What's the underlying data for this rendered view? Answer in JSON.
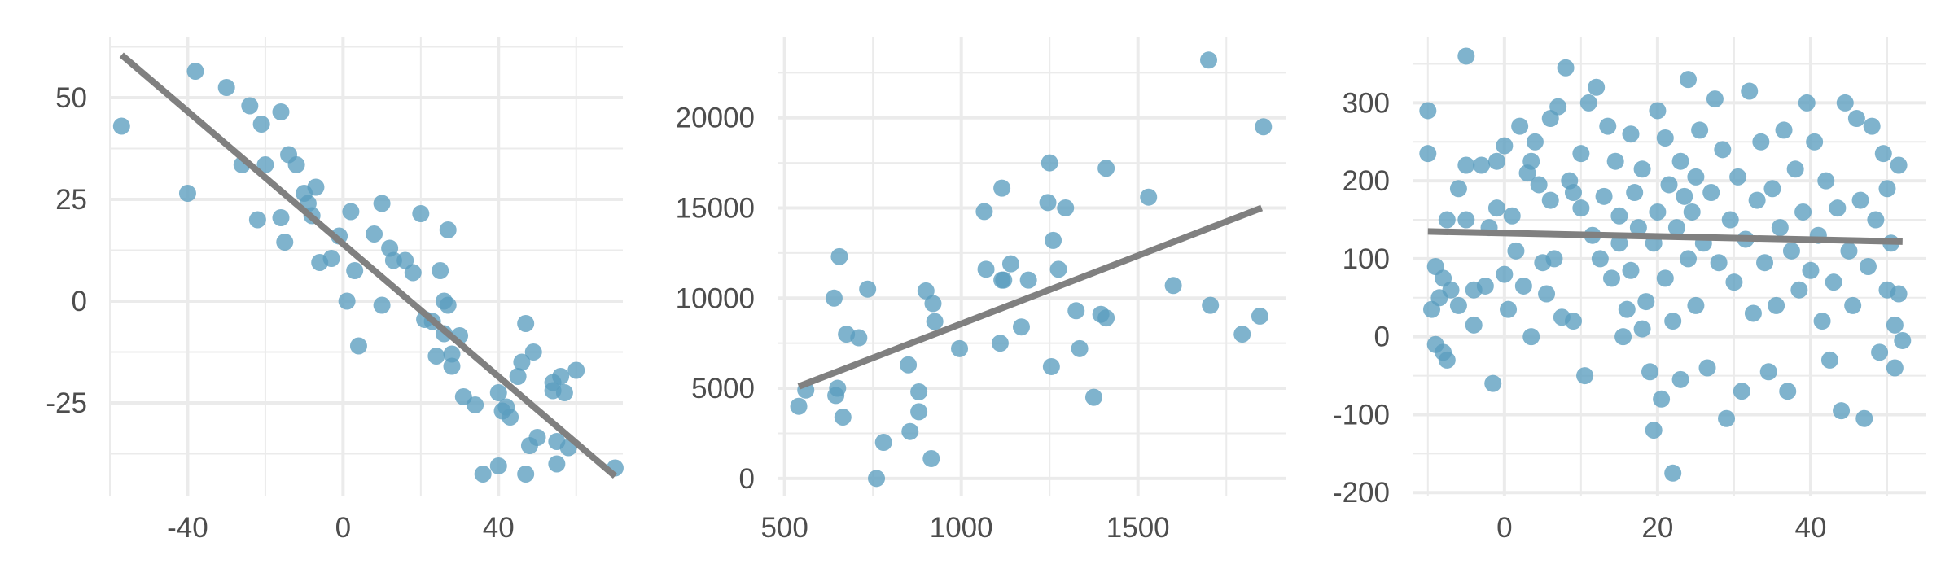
{
  "style": {
    "point_color": "#5b9ebf",
    "line_color": "#808080",
    "grid_color": "#ebebeb",
    "text_color": "#4d4d4d",
    "background": "#ffffff"
  },
  "chart_data": [
    {
      "type": "scatter",
      "title": "",
      "xlabel": "",
      "ylabel": "",
      "xlim": [
        -60,
        72
      ],
      "ylim": [
        -48,
        65
      ],
      "xticks": [
        -40,
        0,
        40
      ],
      "xtick_labels": [
        "-40",
        "0",
        "40"
      ],
      "yticks": [
        -25,
        0,
        25,
        50
      ],
      "ytick_labels": [
        "-25",
        "0",
        "25",
        "50"
      ],
      "grid": true,
      "legend": "none",
      "fit_line": {
        "x": [
          -57,
          70
        ],
        "y": [
          60.5,
          -43
        ]
      },
      "points": [
        {
          "x": -57,
          "y": 43
        },
        {
          "x": -40,
          "y": 26.5
        },
        {
          "x": -38,
          "y": 56.5
        },
        {
          "x": -30,
          "y": 52.5
        },
        {
          "x": -26,
          "y": 33.5
        },
        {
          "x": -24,
          "y": 48
        },
        {
          "x": -22,
          "y": 20
        },
        {
          "x": -21,
          "y": 43.5
        },
        {
          "x": -20,
          "y": 33.5
        },
        {
          "x": -16,
          "y": 46.5
        },
        {
          "x": -16,
          "y": 20.5
        },
        {
          "x": -15,
          "y": 14.5
        },
        {
          "x": -14,
          "y": 36
        },
        {
          "x": -12,
          "y": 33.5
        },
        {
          "x": -10,
          "y": 26.5
        },
        {
          "x": -9,
          "y": 24
        },
        {
          "x": -8,
          "y": 21
        },
        {
          "x": -7,
          "y": 28
        },
        {
          "x": -6,
          "y": 9.5
        },
        {
          "x": -3,
          "y": 10.5
        },
        {
          "x": -1,
          "y": 16
        },
        {
          "x": 1,
          "y": 0
        },
        {
          "x": 2,
          "y": 22
        },
        {
          "x": 3,
          "y": 7.5
        },
        {
          "x": 4,
          "y": -11
        },
        {
          "x": 8,
          "y": 16.5
        },
        {
          "x": 10,
          "y": 24
        },
        {
          "x": 10,
          "y": -1
        },
        {
          "x": 12,
          "y": 13
        },
        {
          "x": 13,
          "y": 10
        },
        {
          "x": 16,
          "y": 10
        },
        {
          "x": 18,
          "y": 7
        },
        {
          "x": 20,
          "y": 21.5
        },
        {
          "x": 21,
          "y": -4.5
        },
        {
          "x": 23,
          "y": -5
        },
        {
          "x": 24,
          "y": -13.5
        },
        {
          "x": 25,
          "y": 7.5
        },
        {
          "x": 26,
          "y": -8
        },
        {
          "x": 26,
          "y": 0
        },
        {
          "x": 27,
          "y": -1
        },
        {
          "x": 27,
          "y": 17.5
        },
        {
          "x": 28,
          "y": -16
        },
        {
          "x": 28,
          "y": -13
        },
        {
          "x": 30,
          "y": -8.5
        },
        {
          "x": 31,
          "y": -23.5
        },
        {
          "x": 34,
          "y": -25.5
        },
        {
          "x": 36,
          "y": -42.5
        },
        {
          "x": 40,
          "y": -22.5
        },
        {
          "x": 40,
          "y": -40.5
        },
        {
          "x": 41,
          "y": -27
        },
        {
          "x": 42,
          "y": -26
        },
        {
          "x": 43,
          "y": -28.5
        },
        {
          "x": 45,
          "y": -18.5
        },
        {
          "x": 46,
          "y": -15
        },
        {
          "x": 47,
          "y": -5.5
        },
        {
          "x": 47,
          "y": -42.5
        },
        {
          "x": 48,
          "y": -35.5
        },
        {
          "x": 49,
          "y": -12.5
        },
        {
          "x": 50,
          "y": -33.5
        },
        {
          "x": 54,
          "y": -22
        },
        {
          "x": 54,
          "y": -20
        },
        {
          "x": 55,
          "y": -34.5
        },
        {
          "x": 55,
          "y": -40
        },
        {
          "x": 56,
          "y": -18.5
        },
        {
          "x": 57,
          "y": -22.5
        },
        {
          "x": 58,
          "y": -36
        },
        {
          "x": 60,
          "y": -17
        },
        {
          "x": 70,
          "y": -41
        }
      ]
    },
    {
      "type": "scatter",
      "title": "",
      "xlabel": "",
      "ylabel": "",
      "xlim": [
        480,
        1920
      ],
      "ylim": [
        -1000,
        24500
      ],
      "xticks": [
        500,
        1000,
        1500
      ],
      "xtick_labels": [
        "500",
        "1000",
        "1500"
      ],
      "yticks": [
        0,
        5000,
        10000,
        15000,
        20000
      ],
      "ytick_labels": [
        "0",
        "5000",
        "10000",
        "15000",
        "20000"
      ],
      "grid": true,
      "legend": "none",
      "fit_line": {
        "x": [
          540,
          1850
        ],
        "y": [
          5100,
          15000
        ]
      },
      "points": [
        {
          "x": 540,
          "y": 4000
        },
        {
          "x": 560,
          "y": 4900
        },
        {
          "x": 640,
          "y": 10000
        },
        {
          "x": 645,
          "y": 4600
        },
        {
          "x": 650,
          "y": 5000
        },
        {
          "x": 655,
          "y": 12300
        },
        {
          "x": 665,
          "y": 3400
        },
        {
          "x": 675,
          "y": 8000
        },
        {
          "x": 710,
          "y": 7800
        },
        {
          "x": 735,
          "y": 10500
        },
        {
          "x": 760,
          "y": 0
        },
        {
          "x": 780,
          "y": 2000
        },
        {
          "x": 850,
          "y": 6300
        },
        {
          "x": 855,
          "y": 2600
        },
        {
          "x": 880,
          "y": 4800
        },
        {
          "x": 880,
          "y": 3700
        },
        {
          "x": 900,
          "y": 10400
        },
        {
          "x": 915,
          "y": 1100
        },
        {
          "x": 920,
          "y": 9700
        },
        {
          "x": 925,
          "y": 8700
        },
        {
          "x": 995,
          "y": 7200
        },
        {
          "x": 1065,
          "y": 14800
        },
        {
          "x": 1070,
          "y": 11600
        },
        {
          "x": 1110,
          "y": 7500
        },
        {
          "x": 1115,
          "y": 16100
        },
        {
          "x": 1115,
          "y": 11000
        },
        {
          "x": 1120,
          "y": 11000
        },
        {
          "x": 1140,
          "y": 11900
        },
        {
          "x": 1170,
          "y": 8400
        },
        {
          "x": 1190,
          "y": 11000
        },
        {
          "x": 1245,
          "y": 15300
        },
        {
          "x": 1250,
          "y": 17500
        },
        {
          "x": 1255,
          "y": 6200
        },
        {
          "x": 1260,
          "y": 13200
        },
        {
          "x": 1275,
          "y": 11600
        },
        {
          "x": 1295,
          "y": 15000
        },
        {
          "x": 1325,
          "y": 9300
        },
        {
          "x": 1335,
          "y": 7200
        },
        {
          "x": 1375,
          "y": 4500
        },
        {
          "x": 1395,
          "y": 9100
        },
        {
          "x": 1410,
          "y": 17200
        },
        {
          "x": 1410,
          "y": 8900
        },
        {
          "x": 1530,
          "y": 15600
        },
        {
          "x": 1600,
          "y": 10700
        },
        {
          "x": 1700,
          "y": 23200
        },
        {
          "x": 1705,
          "y": 9600
        },
        {
          "x": 1795,
          "y": 8000
        },
        {
          "x": 1845,
          "y": 9000
        },
        {
          "x": 1855,
          "y": 19500
        }
      ]
    },
    {
      "type": "scatter",
      "title": "",
      "xlabel": "",
      "ylabel": "",
      "xlim": [
        -12,
        55
      ],
      "ylim": [
        -205,
        385
      ],
      "xticks": [
        0,
        20,
        40
      ],
      "xtick_labels": [
        "0",
        "20",
        "40"
      ],
      "yticks": [
        -200,
        -100,
        0,
        100,
        200,
        300
      ],
      "ytick_labels": [
        "-200",
        "-100",
        "0",
        "100",
        "200",
        "300"
      ],
      "grid": true,
      "legend": "none",
      "fit_line": {
        "x": [
          -10,
          52
        ],
        "y": [
          135,
          122
        ]
      },
      "points": [
        {
          "x": -10,
          "y": 290
        },
        {
          "x": -10,
          "y": 235
        },
        {
          "x": -9.5,
          "y": 35
        },
        {
          "x": -9,
          "y": 90
        },
        {
          "x": -9,
          "y": -10
        },
        {
          "x": -8.5,
          "y": 50
        },
        {
          "x": -8,
          "y": 75
        },
        {
          "x": -8,
          "y": -20
        },
        {
          "x": -7.5,
          "y": 150
        },
        {
          "x": -7.5,
          "y": -30
        },
        {
          "x": -7,
          "y": 60
        },
        {
          "x": -6,
          "y": 40
        },
        {
          "x": -6,
          "y": 190
        },
        {
          "x": -5,
          "y": 360
        },
        {
          "x": -5,
          "y": 220
        },
        {
          "x": -5,
          "y": 150
        },
        {
          "x": -4,
          "y": 60
        },
        {
          "x": -4,
          "y": 15
        },
        {
          "x": -3,
          "y": 220
        },
        {
          "x": -2.5,
          "y": 65
        },
        {
          "x": -2,
          "y": 140
        },
        {
          "x": -1.5,
          "y": -60
        },
        {
          "x": -1,
          "y": 165
        },
        {
          "x": -1,
          "y": 225
        },
        {
          "x": 0,
          "y": 80
        },
        {
          "x": 0,
          "y": 245
        },
        {
          "x": 0.5,
          "y": 35
        },
        {
          "x": 1,
          "y": 155
        },
        {
          "x": 1.5,
          "y": 110
        },
        {
          "x": 2,
          "y": 270
        },
        {
          "x": 2.5,
          "y": 65
        },
        {
          "x": 3,
          "y": 210
        },
        {
          "x": 3.5,
          "y": 225
        },
        {
          "x": 3.5,
          "y": 0
        },
        {
          "x": 4,
          "y": 250
        },
        {
          "x": 4.5,
          "y": 195
        },
        {
          "x": 5,
          "y": 95
        },
        {
          "x": 5.5,
          "y": 55
        },
        {
          "x": 6,
          "y": 280
        },
        {
          "x": 6,
          "y": 175
        },
        {
          "x": 6.5,
          "y": 100
        },
        {
          "x": 7,
          "y": 295
        },
        {
          "x": 7.5,
          "y": 25
        },
        {
          "x": 8,
          "y": 345
        },
        {
          "x": 8.5,
          "y": 200
        },
        {
          "x": 9,
          "y": 185
        },
        {
          "x": 9,
          "y": 20
        },
        {
          "x": 10,
          "y": 165
        },
        {
          "x": 10,
          "y": 235
        },
        {
          "x": 10.5,
          "y": -50
        },
        {
          "x": 11,
          "y": 300
        },
        {
          "x": 11.5,
          "y": 130
        },
        {
          "x": 12,
          "y": 320
        },
        {
          "x": 12.5,
          "y": 100
        },
        {
          "x": 13,
          "y": 180
        },
        {
          "x": 13.5,
          "y": 270
        },
        {
          "x": 14,
          "y": 75
        },
        {
          "x": 14.5,
          "y": 225
        },
        {
          "x": 15,
          "y": 155
        },
        {
          "x": 15,
          "y": 120
        },
        {
          "x": 15.5,
          "y": 0
        },
        {
          "x": 16,
          "y": 35
        },
        {
          "x": 16.5,
          "y": 85
        },
        {
          "x": 16.5,
          "y": 260
        },
        {
          "x": 17,
          "y": 185
        },
        {
          "x": 17.5,
          "y": 140
        },
        {
          "x": 18,
          "y": 10
        },
        {
          "x": 18,
          "y": 215
        },
        {
          "x": 18.5,
          "y": 45
        },
        {
          "x": 19,
          "y": -45
        },
        {
          "x": 19.5,
          "y": 120
        },
        {
          "x": 19.5,
          "y": -120
        },
        {
          "x": 20,
          "y": 160
        },
        {
          "x": 20,
          "y": 290
        },
        {
          "x": 20.5,
          "y": -80
        },
        {
          "x": 21,
          "y": 255
        },
        {
          "x": 21,
          "y": 75
        },
        {
          "x": 21.5,
          "y": 195
        },
        {
          "x": 22,
          "y": -175
        },
        {
          "x": 22,
          "y": 20
        },
        {
          "x": 22.5,
          "y": 140
        },
        {
          "x": 23,
          "y": 225
        },
        {
          "x": 23,
          "y": -55
        },
        {
          "x": 23.5,
          "y": 180
        },
        {
          "x": 24,
          "y": 330
        },
        {
          "x": 24,
          "y": 100
        },
        {
          "x": 24.5,
          "y": 160
        },
        {
          "x": 25,
          "y": 40
        },
        {
          "x": 25,
          "y": 205
        },
        {
          "x": 25.5,
          "y": 265
        },
        {
          "x": 26,
          "y": 120
        },
        {
          "x": 26.5,
          "y": -40
        },
        {
          "x": 27,
          "y": 185
        },
        {
          "x": 27.5,
          "y": 305
        },
        {
          "x": 28,
          "y": 95
        },
        {
          "x": 28.5,
          "y": 240
        },
        {
          "x": 29,
          "y": -105
        },
        {
          "x": 29.5,
          "y": 150
        },
        {
          "x": 30,
          "y": 70
        },
        {
          "x": 30.5,
          "y": 205
        },
        {
          "x": 31,
          "y": -70
        },
        {
          "x": 31.5,
          "y": 125
        },
        {
          "x": 32,
          "y": 315
        },
        {
          "x": 32.5,
          "y": 30
        },
        {
          "x": 33,
          "y": 175
        },
        {
          "x": 33.5,
          "y": 250
        },
        {
          "x": 34,
          "y": 95
        },
        {
          "x": 34.5,
          "y": -45
        },
        {
          "x": 35,
          "y": 190
        },
        {
          "x": 35.5,
          "y": 40
        },
        {
          "x": 36,
          "y": 140
        },
        {
          "x": 36.5,
          "y": 265
        },
        {
          "x": 37,
          "y": -70
        },
        {
          "x": 37.5,
          "y": 110
        },
        {
          "x": 38,
          "y": 215
        },
        {
          "x": 38.5,
          "y": 60
        },
        {
          "x": 39,
          "y": 160
        },
        {
          "x": 39.5,
          "y": 300
        },
        {
          "x": 40,
          "y": 85
        },
        {
          "x": 40.5,
          "y": 250
        },
        {
          "x": 41,
          "y": 130
        },
        {
          "x": 41.5,
          "y": 20
        },
        {
          "x": 42,
          "y": 200
        },
        {
          "x": 42.5,
          "y": -30
        },
        {
          "x": 43,
          "y": 70
        },
        {
          "x": 43.5,
          "y": 165
        },
        {
          "x": 44,
          "y": -95
        },
        {
          "x": 44.5,
          "y": 300
        },
        {
          "x": 45,
          "y": 110
        },
        {
          "x": 45.5,
          "y": 40
        },
        {
          "x": 46,
          "y": 280
        },
        {
          "x": 46.5,
          "y": 175
        },
        {
          "x": 47,
          "y": -105
        },
        {
          "x": 47.5,
          "y": 90
        },
        {
          "x": 48,
          "y": 270
        },
        {
          "x": 48.5,
          "y": 150
        },
        {
          "x": 49,
          "y": -20
        },
        {
          "x": 49.5,
          "y": 235
        },
        {
          "x": 50,
          "y": 60
        },
        {
          "x": 50,
          "y": 190
        },
        {
          "x": 50.5,
          "y": 120
        },
        {
          "x": 51,
          "y": -40
        },
        {
          "x": 51,
          "y": 15
        },
        {
          "x": 51.5,
          "y": 220
        },
        {
          "x": 51.5,
          "y": 55
        },
        {
          "x": 52,
          "y": -5
        }
      ]
    }
  ]
}
